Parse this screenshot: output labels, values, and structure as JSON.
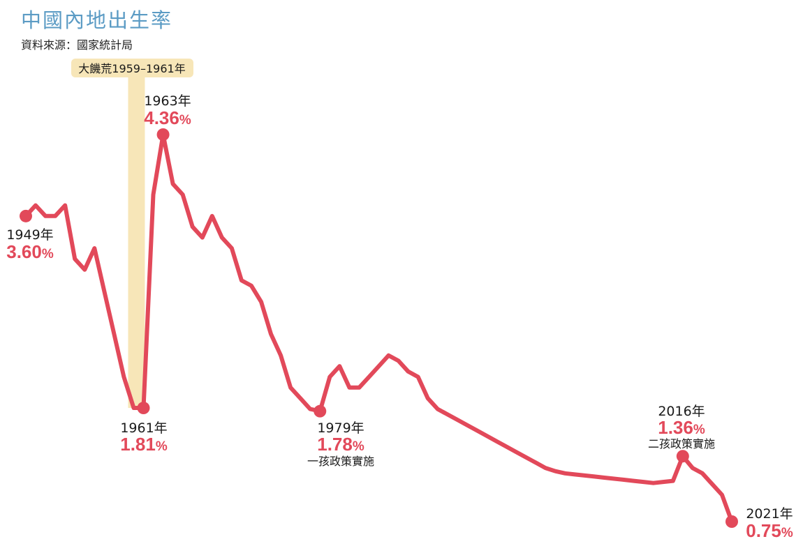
{
  "title": "中國內地出生率",
  "source": "資料來源：國家統計局",
  "colors": {
    "line": "#e2495a",
    "title": "#5b9bc4",
    "famine_band": "#f7e6b8"
  },
  "famine": {
    "label": "大饑荒1959–1961年",
    "start": 1959,
    "end": 1961
  },
  "chart_data": {
    "type": "line",
    "title": "中國內地出生率",
    "xlabel": "",
    "ylabel": "",
    "unit": "%",
    "xlim": [
      1949,
      2021
    ],
    "ylim": [
      0.75,
      4.36
    ],
    "grid": false,
    "x": [
      1949,
      1950,
      1951,
      1952,
      1953,
      1954,
      1955,
      1956,
      1957,
      1958,
      1959,
      1960,
      1961,
      1962,
      1963,
      1964,
      1965,
      1966,
      1967,
      1968,
      1969,
      1970,
      1971,
      1972,
      1973,
      1974,
      1975,
      1976,
      1977,
      1978,
      1979,
      1980,
      1981,
      1982,
      1983,
      1984,
      1985,
      1986,
      1987,
      1988,
      1989,
      1990,
      1991,
      1992,
      1993,
      1994,
      1995,
      1996,
      1997,
      1998,
      1999,
      2000,
      2001,
      2002,
      2003,
      2004,
      2005,
      2006,
      2007,
      2008,
      2009,
      2010,
      2011,
      2012,
      2013,
      2014,
      2015,
      2016,
      2017,
      2018,
      2019,
      2020,
      2021
    ],
    "series": [
      {
        "values": [
          3.6,
          3.7,
          3.6,
          3.6,
          3.7,
          3.2,
          3.1,
          3.3,
          2.9,
          2.5,
          2.1,
          1.81,
          1.81,
          3.8,
          4.36,
          3.9,
          3.8,
          3.5,
          3.4,
          3.6,
          3.4,
          3.3,
          3.0,
          2.95,
          2.8,
          2.5,
          2.3,
          2.0,
          1.9,
          1.8,
          1.78,
          2.1,
          2.2,
          2.0,
          2.0,
          2.1,
          2.2,
          2.3,
          2.25,
          2.15,
          2.1,
          1.9,
          1.8,
          1.75,
          1.7,
          1.65,
          1.6,
          1.55,
          1.5,
          1.45,
          1.4,
          1.35,
          1.3,
          1.25,
          1.22,
          1.2,
          1.19,
          1.18,
          1.17,
          1.16,
          1.15,
          1.14,
          1.13,
          1.12,
          1.11,
          1.12,
          1.13,
          1.36,
          1.25,
          1.2,
          1.1,
          1.0,
          0.75
        ]
      }
    ],
    "annotations": [
      {
        "x": 1949,
        "year": "1949年",
        "value": "3.60",
        "pct": "%",
        "note": ""
      },
      {
        "x": 1961,
        "year": "1961年",
        "value": "1.81",
        "pct": "%",
        "note": ""
      },
      {
        "x": 1963,
        "year": "1963年",
        "value": "4.36",
        "pct": "%",
        "note": ""
      },
      {
        "x": 1979,
        "year": "1979年",
        "value": "1.78",
        "pct": "%",
        "note": "一孩政策實施"
      },
      {
        "x": 2016,
        "year": "2016年",
        "value": "1.36",
        "pct": "%",
        "note": "二孩政策實施"
      },
      {
        "x": 2021,
        "year": "2021年",
        "value": "0.75",
        "pct": "%",
        "note": ""
      }
    ]
  }
}
